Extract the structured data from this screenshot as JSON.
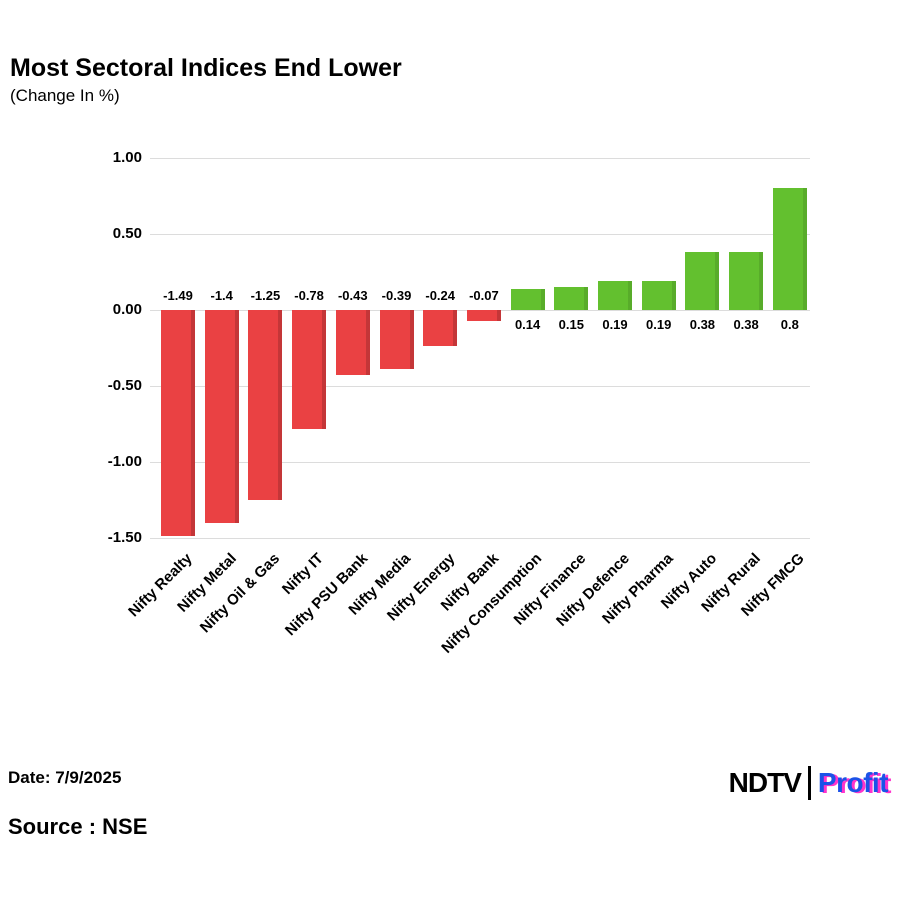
{
  "header": {
    "title": "Most Sectoral Indices End Lower",
    "subtitle": "(Change In %)"
  },
  "footer": {
    "date_label": "Date: 7/9/2025",
    "source_label": "Source : NSE",
    "logo": {
      "ndtv": "NDTV",
      "profit": "Profit"
    }
  },
  "colors": {
    "positive": "#63c02f",
    "negative": "#ea4143",
    "grid": "#dcdcdc",
    "text": "#000000",
    "profit_blue": "#1b52e8",
    "profit_magenta": "#ff33cc"
  },
  "chart_data": {
    "type": "bar",
    "title": "Most Sectoral Indices End Lower",
    "subtitle": "(Change In %)",
    "categories": [
      "Nifty Realty",
      "Nifty Metal",
      "Nifty Oil & Gas",
      "Nifty IT",
      "Nifty PSU Bank",
      "Nifty Media",
      "Nifty Energy",
      "Nifty Bank",
      "Nifty Consumption",
      "Nifty Finance",
      "Nifty Defence",
      "Nifty Pharma",
      "Nifty Auto",
      "Nifty Rural",
      "Nifty FMCG"
    ],
    "values": [
      -1.49,
      -1.4,
      -1.25,
      -0.78,
      -0.43,
      -0.39,
      -0.24,
      -0.07,
      0.14,
      0.15,
      0.19,
      0.19,
      0.38,
      0.38,
      0.8
    ],
    "labels": [
      "-1.49",
      "-1.4",
      "-1.25",
      "-0.78",
      "-0.43",
      "-0.39",
      "-0.24",
      "-0.07",
      "0.14",
      "0.15",
      "0.19",
      "0.19",
      "0.38",
      "0.38",
      "0.8"
    ],
    "xlabel": "",
    "ylabel": "",
    "ylim": [
      -1.5,
      1.0
    ],
    "yticks": [
      1.0,
      0.5,
      0.0,
      -0.5,
      -1.0,
      -1.5
    ],
    "ytick_labels": [
      "1.00",
      "0.50",
      "0.00",
      "-0.50",
      "-1.00",
      "-1.50"
    ],
    "grid": true,
    "legend": false,
    "bar_color_positive": "#63c02f",
    "bar_color_negative": "#ea4143"
  }
}
